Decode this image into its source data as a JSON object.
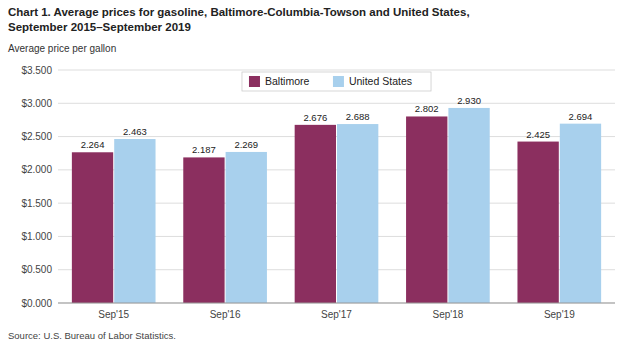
{
  "chart_data": {
    "type": "bar",
    "title": "Chart 1. Average prices for gasoline, Baltimore-Columbia-Towson and United States,",
    "subtitle": "September 2015–September 2019",
    "y_label": "Average price per gallon",
    "source": "Source: U.S. Bureau of Labor Statistics.",
    "categories": [
      "Sep'15",
      "Sep'16",
      "Sep'17",
      "Sep'18",
      "Sep'19"
    ],
    "series": [
      {
        "name": "Baltimore",
        "color": "#8B2F5F",
        "values": [
          2.264,
          2.187,
          2.676,
          2.802,
          2.425
        ],
        "value_labels": [
          "2.264",
          "2.187",
          "2.676",
          "2.802",
          "2.425"
        ]
      },
      {
        "name": "United States",
        "color": "#A8D0ED",
        "values": [
          2.463,
          2.269,
          2.688,
          2.93,
          2.694
        ],
        "value_labels": [
          "2.463",
          "2.269",
          "2.688",
          "2.930",
          "2.694"
        ]
      }
    ],
    "ylim": [
      0.0,
      3.5
    ],
    "yticks": [
      {
        "value": 0.0,
        "label": "$0.000"
      },
      {
        "value": 0.5,
        "label": "$0.500"
      },
      {
        "value": 1.0,
        "label": "$1.000"
      },
      {
        "value": 1.5,
        "label": "$1.500"
      },
      {
        "value": 2.0,
        "label": "$2.000"
      },
      {
        "value": 2.5,
        "label": "$2.500"
      },
      {
        "value": 3.0,
        "label": "$3.000"
      },
      {
        "value": 3.5,
        "label": "$3.500"
      }
    ],
    "grid": true,
    "legend": "upper center",
    "data_labels": true
  }
}
